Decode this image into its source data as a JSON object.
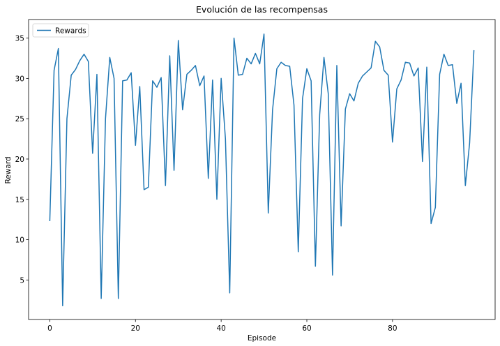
{
  "chart_data": {
    "type": "line",
    "title": "Evolución de las recompensas",
    "xlabel": "Episode",
    "ylabel": "Reward",
    "xlim": [
      -4.95,
      103.95
    ],
    "ylim": [
      0.1,
      37.3
    ],
    "xticks": [
      0,
      20,
      40,
      60,
      80
    ],
    "yticks": [
      5,
      10,
      15,
      20,
      25,
      30,
      35
    ],
    "grid": false,
    "legend": {
      "position": "upper left"
    },
    "series": [
      {
        "name": "Rewards",
        "color": "#1f77b4",
        "x": [
          0,
          1,
          2,
          3,
          4,
          5,
          6,
          7,
          8,
          9,
          10,
          11,
          12,
          13,
          14,
          15,
          16,
          17,
          18,
          19,
          20,
          21,
          22,
          23,
          24,
          25,
          26,
          27,
          28,
          29,
          30,
          31,
          32,
          33,
          34,
          35,
          36,
          37,
          38,
          39,
          40,
          41,
          42,
          43,
          44,
          45,
          46,
          47,
          48,
          49,
          50,
          51,
          52,
          53,
          54,
          55,
          56,
          57,
          58,
          59,
          60,
          61,
          62,
          63,
          64,
          65,
          66,
          67,
          68,
          69,
          70,
          71,
          72,
          73,
          74,
          75,
          76,
          77,
          78,
          79,
          80,
          81,
          82,
          83,
          84,
          85,
          86,
          87,
          88,
          89,
          90,
          91,
          92,
          93,
          94,
          95,
          96,
          97,
          98,
          99
        ],
        "values": [
          12.3,
          31.0,
          33.7,
          1.8,
          25.0,
          30.4,
          31.1,
          32.2,
          33.0,
          32.1,
          20.7,
          30.5,
          2.7,
          25.0,
          32.6,
          30.0,
          2.7,
          29.7,
          29.8,
          30.7,
          21.7,
          29.0,
          16.2,
          16.5,
          29.7,
          28.9,
          30.1,
          16.7,
          32.8,
          18.6,
          34.7,
          26.1,
          30.5,
          31.0,
          31.6,
          29.1,
          30.3,
          17.6,
          29.8,
          15.0,
          30.0,
          22.5,
          3.4,
          35.0,
          30.4,
          30.5,
          32.5,
          31.8,
          33.1,
          31.8,
          35.5,
          13.3,
          26.1,
          31.2,
          32.0,
          31.6,
          31.5,
          26.7,
          8.5,
          27.5,
          31.2,
          29.7,
          6.7,
          25.5,
          32.6,
          28.1,
          5.6,
          31.6,
          11.7,
          26.2,
          28.1,
          27.2,
          29.4,
          30.3,
          30.8,
          31.3,
          34.6,
          33.9,
          31.0,
          30.4,
          22.1,
          28.7,
          29.8,
          32.0,
          31.9,
          30.3,
          31.3,
          19.7,
          31.4,
          12.0,
          14.0,
          30.5,
          33.0,
          31.6,
          31.7,
          26.9,
          29.4,
          16.7,
          22.0,
          33.5
        ]
      }
    ]
  }
}
